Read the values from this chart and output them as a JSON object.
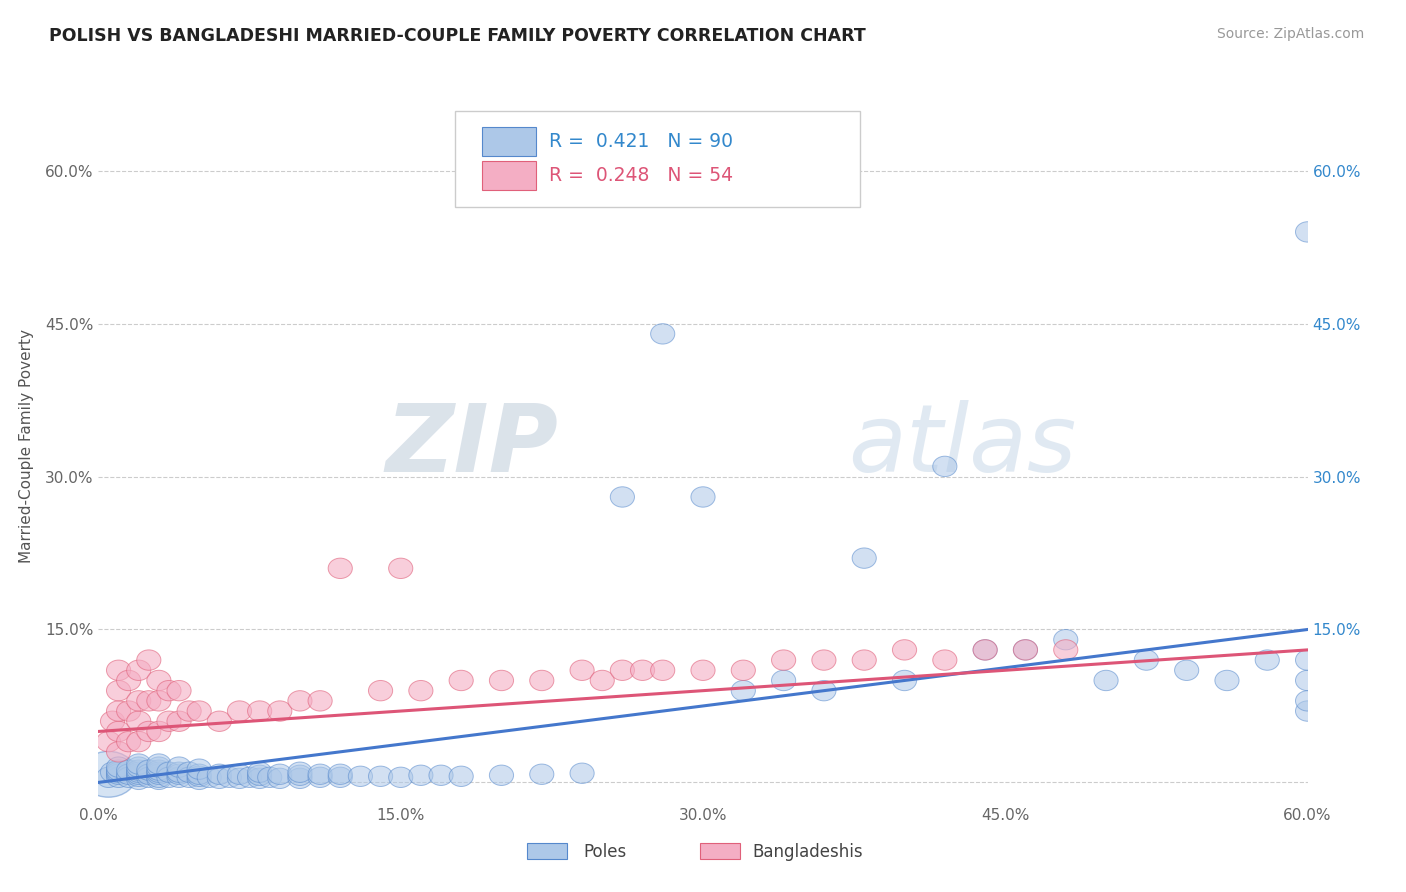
{
  "title": "POLISH VS BANGLADESHI MARRIED-COUPLE FAMILY POVERTY CORRELATION CHART",
  "source": "Source: ZipAtlas.com",
  "ylabel": "Married-Couple Family Poverty",
  "xlim": [
    0,
    0.6
  ],
  "ylim": [
    -0.02,
    0.68
  ],
  "xticks": [
    0.0,
    0.15,
    0.3,
    0.45,
    0.6
  ],
  "xtick_labels": [
    "0.0%",
    "15.0%",
    "30.0%",
    "45.0%",
    "60.0%"
  ],
  "yticks": [
    0.0,
    0.15,
    0.3,
    0.45,
    0.6
  ],
  "ytick_labels": [
    "",
    "15.0%",
    "30.0%",
    "45.0%",
    "60.0%"
  ],
  "right_ytick_labels": [
    "",
    "15.0%",
    "30.0%",
    "45.0%",
    "60.0%"
  ],
  "poles_color": "#adc8e8",
  "bangladeshis_color": "#f4aec4",
  "poles_edge_color": "#5588cc",
  "bangladeshis_edge_color": "#e0607a",
  "poles_line_color": "#4477cc",
  "bangladeshis_line_color": "#dd5577",
  "poles_R": "0.421",
  "poles_N": "90",
  "bangladeshis_R": "0.248",
  "bangladeshis_N": "54",
  "poles_label": "Poles",
  "bangladeshis_label": "Bangladeshis",
  "watermark_zip": "ZIP",
  "watermark_atlas": "atlas",
  "grid_color": "#cccccc",
  "poles_x": [
    0.005,
    0.007,
    0.01,
    0.01,
    0.01,
    0.01,
    0.01,
    0.015,
    0.015,
    0.015,
    0.02,
    0.02,
    0.02,
    0.02,
    0.02,
    0.02,
    0.02,
    0.025,
    0.025,
    0.025,
    0.03,
    0.03,
    0.03,
    0.03,
    0.03,
    0.03,
    0.03,
    0.035,
    0.035,
    0.04,
    0.04,
    0.04,
    0.04,
    0.045,
    0.045,
    0.05,
    0.05,
    0.05,
    0.05,
    0.055,
    0.06,
    0.06,
    0.065,
    0.07,
    0.07,
    0.075,
    0.08,
    0.08,
    0.08,
    0.085,
    0.09,
    0.09,
    0.1,
    0.1,
    0.1,
    0.11,
    0.11,
    0.12,
    0.12,
    0.13,
    0.14,
    0.15,
    0.16,
    0.17,
    0.18,
    0.2,
    0.22,
    0.24,
    0.26,
    0.28,
    0.3,
    0.32,
    0.34,
    0.36,
    0.38,
    0.4,
    0.42,
    0.44,
    0.46,
    0.48,
    0.5,
    0.52,
    0.54,
    0.56,
    0.58,
    0.6,
    0.6,
    0.6,
    0.6,
    0.6
  ],
  "poles_y": [
    0.005,
    0.01,
    0.005,
    0.008,
    0.01,
    0.012,
    0.015,
    0.005,
    0.008,
    0.012,
    0.003,
    0.006,
    0.008,
    0.01,
    0.012,
    0.015,
    0.018,
    0.005,
    0.008,
    0.012,
    0.003,
    0.005,
    0.008,
    0.01,
    0.012,
    0.015,
    0.018,
    0.005,
    0.01,
    0.005,
    0.008,
    0.01,
    0.015,
    0.005,
    0.01,
    0.003,
    0.006,
    0.008,
    0.013,
    0.005,
    0.004,
    0.008,
    0.005,
    0.004,
    0.008,
    0.005,
    0.004,
    0.007,
    0.01,
    0.005,
    0.004,
    0.008,
    0.004,
    0.007,
    0.01,
    0.005,
    0.008,
    0.005,
    0.008,
    0.006,
    0.006,
    0.005,
    0.007,
    0.007,
    0.006,
    0.007,
    0.008,
    0.009,
    0.28,
    0.44,
    0.28,
    0.09,
    0.1,
    0.09,
    0.22,
    0.1,
    0.31,
    0.13,
    0.13,
    0.14,
    0.1,
    0.12,
    0.11,
    0.1,
    0.12,
    0.07,
    0.1,
    0.12,
    0.54,
    0.08
  ],
  "bangladeshis_x": [
    0.005,
    0.007,
    0.01,
    0.01,
    0.01,
    0.01,
    0.01,
    0.015,
    0.015,
    0.015,
    0.02,
    0.02,
    0.02,
    0.02,
    0.025,
    0.025,
    0.025,
    0.03,
    0.03,
    0.03,
    0.035,
    0.035,
    0.04,
    0.04,
    0.045,
    0.05,
    0.06,
    0.07,
    0.08,
    0.09,
    0.1,
    0.11,
    0.12,
    0.14,
    0.15,
    0.16,
    0.18,
    0.2,
    0.22,
    0.24,
    0.25,
    0.26,
    0.27,
    0.28,
    0.3,
    0.32,
    0.34,
    0.36,
    0.38,
    0.4,
    0.42,
    0.44,
    0.46,
    0.48
  ],
  "bangladeshis_y": [
    0.04,
    0.06,
    0.03,
    0.05,
    0.07,
    0.09,
    0.11,
    0.04,
    0.07,
    0.1,
    0.04,
    0.06,
    0.08,
    0.11,
    0.05,
    0.08,
    0.12,
    0.05,
    0.08,
    0.1,
    0.06,
    0.09,
    0.06,
    0.09,
    0.07,
    0.07,
    0.06,
    0.07,
    0.07,
    0.07,
    0.08,
    0.08,
    0.21,
    0.09,
    0.21,
    0.09,
    0.1,
    0.1,
    0.1,
    0.11,
    0.1,
    0.11,
    0.11,
    0.11,
    0.11,
    0.11,
    0.12,
    0.12,
    0.12,
    0.13,
    0.12,
    0.13,
    0.13,
    0.13
  ],
  "poles_large_x": [
    0.005
  ],
  "poles_large_y": [
    0.01
  ],
  "poles_large_size": [
    2500
  ]
}
